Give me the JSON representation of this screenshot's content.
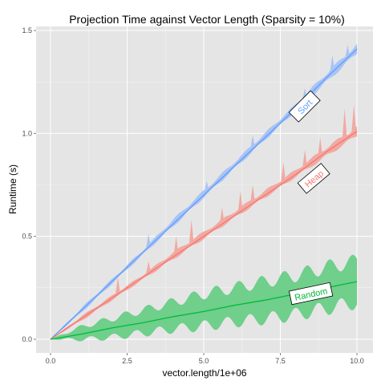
{
  "chart_data": {
    "type": "line",
    "title": "Projection Time against Vector Length (Sparsity = 10%)",
    "xlabel": "vector.length/1e+06",
    "ylabel": "Runtime (s)",
    "xlim": [
      0,
      10
    ],
    "ylim": [
      0,
      1.5
    ],
    "x_ticks": [
      0,
      2.5,
      5,
      7.5,
      10
    ],
    "y_ticks": [
      0,
      0.5,
      1,
      1.5
    ],
    "x_tick_labels": [
      "0.0",
      "2.5",
      "5.0",
      "7.5",
      "10.0"
    ],
    "y_tick_labels": [
      "0.0",
      "0.5",
      "1.0",
      "1.5"
    ],
    "grid": true,
    "background": "#e5e5e5",
    "series": [
      {
        "name": "Sort",
        "color": "#619cff",
        "band_color": "#a8c4f5",
        "x": [
          0,
          1,
          2,
          3,
          4,
          5,
          6,
          7,
          8,
          9,
          10
        ],
        "y": [
          0,
          0.14,
          0.28,
          0.42,
          0.56,
          0.7,
          0.84,
          0.98,
          1.12,
          1.27,
          1.41
        ],
        "band_lower": [
          0,
          0.13,
          0.27,
          0.41,
          0.55,
          0.69,
          0.83,
          0.97,
          1.11,
          1.25,
          1.39
        ],
        "band_upper": [
          0,
          0.15,
          0.29,
          0.43,
          0.58,
          0.72,
          0.86,
          1.0,
          1.14,
          1.29,
          1.43
        ],
        "spikes": [
          [
            3.2,
            0.51
          ],
          [
            5.1,
            0.77
          ],
          [
            6.6,
            0.99
          ],
          [
            8.3,
            1.22
          ],
          [
            9.2,
            1.38
          ],
          [
            9.7,
            1.43
          ]
        ]
      },
      {
        "name": "Heap",
        "color": "#f8766d",
        "band_color": "#f1a9a3",
        "x": [
          0,
          1,
          2,
          3,
          4,
          5,
          6,
          7,
          8,
          9,
          10
        ],
        "y": [
          0,
          0.1,
          0.2,
          0.3,
          0.4,
          0.5,
          0.6,
          0.7,
          0.8,
          0.91,
          1.01
        ],
        "band_lower": [
          0,
          0.09,
          0.19,
          0.29,
          0.39,
          0.49,
          0.59,
          0.69,
          0.79,
          0.89,
          0.99
        ],
        "band_upper": [
          0,
          0.11,
          0.21,
          0.31,
          0.42,
          0.52,
          0.62,
          0.72,
          0.82,
          0.93,
          1.03
        ],
        "spikes": [
          [
            2.2,
            0.3
          ],
          [
            3.2,
            0.38
          ],
          [
            4.1,
            0.5
          ],
          [
            4.6,
            0.58
          ],
          [
            5.6,
            0.64
          ],
          [
            6.2,
            0.72
          ],
          [
            6.6,
            0.75
          ],
          [
            7.6,
            0.86
          ],
          [
            8.3,
            0.92
          ],
          [
            8.8,
            0.98
          ],
          [
            9.6,
            1.12
          ],
          [
            9.9,
            1.14
          ]
        ]
      },
      {
        "name": "Random",
        "color": "#00ba38",
        "band_color": "#6fcf8b",
        "x": [
          0,
          1,
          2,
          3,
          4,
          5,
          6,
          7,
          8,
          9,
          10
        ],
        "y": [
          0,
          0.025,
          0.055,
          0.08,
          0.11,
          0.135,
          0.165,
          0.19,
          0.22,
          0.25,
          0.28
        ],
        "band_lower": [
          0,
          0.0,
          0.01,
          0.03,
          0.05,
          0.065,
          0.085,
          0.1,
          0.12,
          0.15,
          0.18
        ],
        "band_upper": [
          0,
          0.06,
          0.1,
          0.14,
          0.18,
          0.22,
          0.25,
          0.28,
          0.31,
          0.35,
          0.38
        ]
      }
    ],
    "annotations": [
      {
        "text": "Sort",
        "x": 8.3,
        "y": 1.13,
        "angle": -45,
        "color": "#619cff"
      },
      {
        "text": "Heap",
        "x": 8.6,
        "y": 0.78,
        "angle": -40,
        "color": "#f8766d"
      },
      {
        "text": "Random",
        "x": 8.5,
        "y": 0.22,
        "angle": -12,
        "color": "#00ba38"
      }
    ]
  }
}
